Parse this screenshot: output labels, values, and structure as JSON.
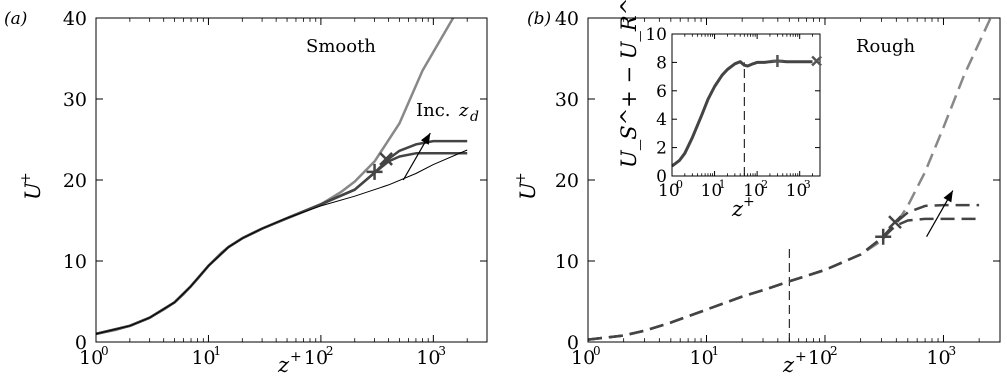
{
  "chart_data": [
    {
      "panel_label": "(a)",
      "type": "line",
      "annotation": "Smooth",
      "arrow_text": "Inc.",
      "arrow_var": "z",
      "arrow_var_sub": "d",
      "xlabel": "z",
      "xlabel_sup": "+",
      "ylabel": "U",
      "ylabel_sup": "+",
      "xscale": "log",
      "xlim": [
        1,
        3000
      ],
      "ylim": [
        0,
        40
      ],
      "xticks": [
        "10",
        "10",
        "10",
        "10"
      ],
      "xtick_exponents": [
        "0",
        "1",
        "2",
        "3"
      ],
      "yticks": [
        "0",
        "10",
        "20",
        "30",
        "40"
      ],
      "grid": false,
      "series": [
        {
          "x": [
            1,
            1.5,
            2,
            3,
            4,
            5,
            6,
            7,
            8,
            10,
            13,
            15,
            20,
            30,
            40,
            60,
            80,
            100,
            150,
            200,
            300,
            500,
            800,
            1500
          ],
          "y": [
            1,
            1.5,
            2,
            3,
            4,
            4.9,
            5.9,
            6.9,
            7.8,
            9.4,
            11.0,
            11.7,
            12.8,
            14.0,
            14.7,
            15.7,
            16.4,
            17.0,
            18.5,
            19.8,
            22.3,
            27.0,
            33.5,
            40
          ],
          "color": "#888888",
          "style": "solid"
        },
        {
          "x": [
            1,
            2,
            3,
            5,
            7,
            10,
            15,
            20,
            30,
            50,
            100,
            200,
            300,
            400,
            500,
            700,
            1000,
            2000
          ],
          "y": [
            1,
            2,
            3,
            4.9,
            6.9,
            9.4,
            11.7,
            12.8,
            14.0,
            15.3,
            17.0,
            18.8,
            20.9,
            22.6,
            23.6,
            24.4,
            24.8,
            24.8
          ],
          "color": "#444444",
          "style": "solid"
        },
        {
          "x": [
            1,
            2,
            3,
            5,
            7,
            10,
            15,
            20,
            30,
            50,
            100,
            200,
            300,
            400,
            500,
            700,
            1000,
            2000
          ],
          "y": [
            1,
            2,
            3,
            4.9,
            6.9,
            9.4,
            11.7,
            12.8,
            14.0,
            15.3,
            17.0,
            18.8,
            20.9,
            22.3,
            22.9,
            23.3,
            23.3,
            23.3
          ],
          "color": "#444444",
          "style": "solid"
        },
        {
          "x": [
            1,
            2,
            3,
            5,
            7,
            10,
            15,
            20,
            30,
            50,
            100,
            200,
            400,
            700,
            1000,
            2000
          ],
          "y": [
            1,
            2,
            3,
            4.9,
            6.9,
            9.4,
            11.7,
            12.8,
            14.0,
            15.3,
            16.8,
            18.0,
            19.4,
            20.8,
            21.9,
            23.7
          ],
          "color": "#000000",
          "style": "solid",
          "width": 1
        }
      ],
      "markers": [
        {
          "x": 300,
          "y": 21,
          "symbol": "+"
        },
        {
          "x": 380,
          "y": 22.6,
          "symbol": "x"
        }
      ],
      "arrow": {
        "from": [
          540,
          20.0
        ],
        "to": [
          940,
          25.8
        ]
      }
    },
    {
      "panel_label": "(b)",
      "type": "line",
      "annotation": "Rough",
      "xlabel": "z",
      "xlabel_sup": "+",
      "ylabel": "U",
      "ylabel_sup": "+",
      "xscale": "log",
      "xlim": [
        1,
        3000
      ],
      "ylim": [
        0,
        40
      ],
      "xticks": [
        "10",
        "10",
        "10",
        "10"
      ],
      "xtick_exponents": [
        "0",
        "1",
        "2",
        "3"
      ],
      "yticks": [
        "0",
        "10",
        "20",
        "30",
        "40"
      ],
      "grid": false,
      "series": [
        {
          "x": [
            1,
            2,
            3,
            5,
            10,
            20,
            30,
            50,
            100,
            200,
            300,
            400,
            500,
            700,
            1000,
            1500,
            2500
          ],
          "y": [
            0.3,
            0.8,
            1.4,
            2.4,
            4.0,
            5.6,
            6.4,
            7.5,
            8.9,
            10.8,
            12.5,
            14.6,
            16.8,
            21.0,
            26.5,
            33.0,
            40
          ],
          "color": "#888888",
          "style": "dashed"
        },
        {
          "x": [
            1,
            2,
            3,
            5,
            10,
            20,
            30,
            50,
            100,
            200,
            300,
            400,
            500,
            700,
            1000,
            2000
          ],
          "y": [
            0.3,
            0.8,
            1.4,
            2.4,
            4.0,
            5.6,
            6.4,
            7.5,
            8.9,
            10.8,
            12.8,
            14.8,
            16.0,
            16.8,
            16.9,
            16.9
          ],
          "color": "#444444",
          "style": "dashed"
        },
        {
          "x": [
            1,
            2,
            3,
            5,
            10,
            20,
            30,
            50,
            100,
            200,
            300,
            400,
            500,
            700,
            1000,
            2000
          ],
          "y": [
            0.3,
            0.8,
            1.4,
            2.4,
            4.0,
            5.6,
            6.4,
            7.5,
            8.9,
            10.8,
            12.8,
            14.4,
            15.0,
            15.2,
            15.2,
            15.2
          ],
          "color": "#444444",
          "style": "dashed"
        }
      ],
      "markers": [
        {
          "x": 310,
          "y": 13,
          "symbol": "+"
        },
        {
          "x": 390,
          "y": 14.8,
          "symbol": "x"
        }
      ],
      "vline": {
        "x": 50,
        "ymax": 11.5
      },
      "arrow": {
        "from": [
          720,
          13.0
        ],
        "to": [
          1200,
          18.7
        ]
      },
      "inset": {
        "type": "line",
        "xlabel": "z",
        "xlabel_sup": "+",
        "ylabel": "U_S^+ − U_R^+",
        "xscale": "log",
        "xlim": [
          1,
          3000
        ],
        "ylim": [
          0,
          10
        ],
        "xticks": [
          "10",
          "10",
          "10",
          "10"
        ],
        "xtick_exponents": [
          "0",
          "1",
          "2",
          "3"
        ],
        "yticks": [
          "0",
          "2",
          "4",
          "6",
          "8",
          "10"
        ],
        "series": [
          {
            "x": [
              1,
              1.5,
              2,
              3,
              5,
              7,
              10,
              15,
              20,
              30,
              40,
              50,
              60,
              80,
              100,
              150,
              200,
              300,
              500,
              1000,
              2000
            ],
            "y": [
              0.7,
              1.1,
              1.6,
              2.7,
              4.3,
              5.4,
              6.3,
              7.1,
              7.5,
              7.9,
              8.05,
              7.8,
              7.75,
              7.9,
              8.0,
              8.0,
              8.05,
              8.1,
              8.05,
              8.05,
              8.05
            ],
            "color": "#444444",
            "style": "solid"
          }
        ],
        "markers": [
          {
            "x": 300,
            "y": 8.1,
            "symbol": "+"
          },
          {
            "x": 2500,
            "y": 8.1,
            "symbol": "x"
          }
        ],
        "vline": {
          "x": 50
        }
      }
    }
  ]
}
